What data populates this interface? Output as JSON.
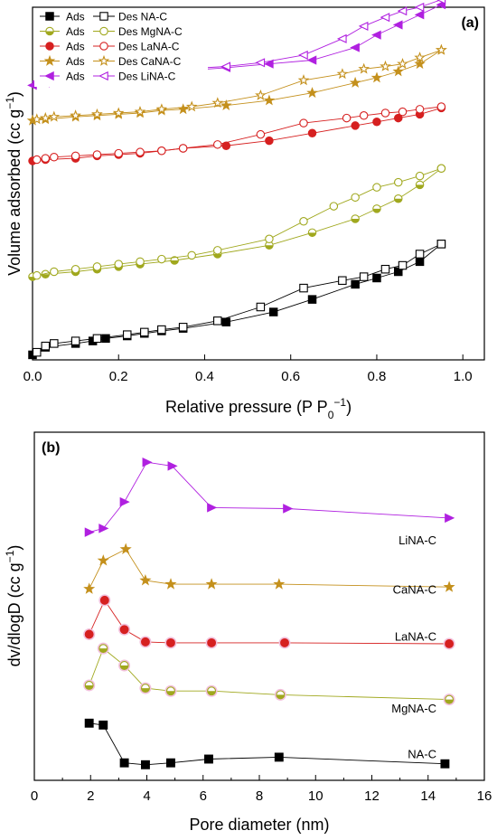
{
  "colors": {
    "NA-C": "#000000",
    "MgNA-C": "#a0a81e",
    "LaNA-C": "#d62020",
    "CaNA-C": "#c4901c",
    "LiNA-C": "#b020e0",
    "halo": "#f2c0dc"
  },
  "markers": {
    "NA-C": "square",
    "MgNA-C": "circle-half",
    "LaNA-C": "circle",
    "CaNA-C": "star",
    "LiNA-C": "triangle-left"
  },
  "chart_data": [
    {
      "type": "scatter",
      "panel_label": "(a)",
      "xlabel": "Relative pressure (P P",
      "xlabel_sub": "0",
      "xlabel_sup": "−1",
      "xlabel_close": ")",
      "ylabel": "Volume adsorbed (cc g",
      "ylabel_sup": "−1",
      "ylabel_close": ")",
      "xlim": [
        0.0,
        1.05
      ],
      "ylim": [
        0,
        14
      ],
      "x_ticks": [
        0.0,
        0.2,
        0.4,
        0.6,
        0.8,
        1.0
      ],
      "x_tick_labels": [
        "0.0",
        "0.2",
        "0.4",
        "0.6",
        "0.8",
        "1.0"
      ],
      "y_ticks_labeled": false,
      "legend_position": "top-left",
      "legend": [
        {
          "ads": "Ads",
          "des": "Des NA-C",
          "key": "NA-C"
        },
        {
          "ads": "Ads",
          "des": "Des MgNA-C",
          "key": "MgNA-C"
        },
        {
          "ads": "Ads",
          "des": "Des LaNA-C",
          "key": "LaNA-C"
        },
        {
          "ads": "Ads",
          "des": "Des CaNA-C",
          "key": "CaNA-C"
        },
        {
          "ads": "Ads",
          "des": "Des LiNA-C",
          "key": "LiNA-C"
        }
      ],
      "series": [
        {
          "name": "NA-C",
          "branch": "ads",
          "x": [
            0.0,
            0.03,
            0.1,
            0.14,
            0.17,
            0.22,
            0.26,
            0.3,
            0.35,
            0.45,
            0.56,
            0.65,
            0.75,
            0.8,
            0.85,
            0.9,
            0.95
          ],
          "y": [
            0.2,
            0.5,
            0.65,
            0.75,
            0.85,
            0.95,
            1.05,
            1.15,
            1.25,
            1.5,
            1.9,
            2.4,
            3.0,
            3.25,
            3.5,
            3.9,
            4.6
          ]
        },
        {
          "name": "NA-C",
          "branch": "des",
          "x": [
            0.01,
            0.03,
            0.05,
            0.1,
            0.15,
            0.22,
            0.26,
            0.3,
            0.35,
            0.43,
            0.53,
            0.63,
            0.72,
            0.77,
            0.82,
            0.86,
            0.9,
            0.95
          ],
          "y": [
            0.3,
            0.55,
            0.65,
            0.75,
            0.85,
            1.0,
            1.1,
            1.2,
            1.3,
            1.55,
            2.1,
            2.85,
            3.15,
            3.3,
            3.6,
            3.75,
            4.2,
            4.6
          ]
        },
        {
          "name": "MgNA-C",
          "branch": "ads",
          "x": [
            0.0,
            0.03,
            0.1,
            0.15,
            0.2,
            0.25,
            0.33,
            0.43,
            0.55,
            0.65,
            0.75,
            0.8,
            0.85,
            0.9,
            0.95
          ],
          "y": [
            3.3,
            3.4,
            3.5,
            3.6,
            3.7,
            3.8,
            3.95,
            4.2,
            4.55,
            5.05,
            5.6,
            6.0,
            6.4,
            6.95,
            7.6
          ]
        },
        {
          "name": "MgNA-C",
          "branch": "des",
          "x": [
            0.01,
            0.05,
            0.1,
            0.15,
            0.2,
            0.25,
            0.3,
            0.37,
            0.43,
            0.55,
            0.63,
            0.7,
            0.75,
            0.8,
            0.85,
            0.9,
            0.95
          ],
          "y": [
            3.35,
            3.5,
            3.6,
            3.7,
            3.8,
            3.9,
            4.0,
            4.15,
            4.35,
            4.8,
            5.5,
            6.1,
            6.45,
            6.85,
            7.05,
            7.3,
            7.6
          ]
        },
        {
          "name": "LaNA-C",
          "branch": "ads",
          "x": [
            0.0,
            0.03,
            0.1,
            0.15,
            0.2,
            0.25,
            0.3,
            0.35,
            0.45,
            0.55,
            0.65,
            0.75,
            0.8,
            0.85,
            0.9,
            0.95
          ],
          "y": [
            7.9,
            7.95,
            8.0,
            8.1,
            8.15,
            8.2,
            8.3,
            8.4,
            8.5,
            8.7,
            9.0,
            9.3,
            9.45,
            9.6,
            9.75,
            10.0
          ]
        },
        {
          "name": "LaNA-C",
          "branch": "des",
          "x": [
            0.01,
            0.03,
            0.05,
            0.1,
            0.15,
            0.2,
            0.25,
            0.3,
            0.35,
            0.43,
            0.53,
            0.63,
            0.73,
            0.77,
            0.82,
            0.86,
            0.9,
            0.95
          ],
          "y": [
            7.95,
            8.0,
            8.05,
            8.1,
            8.15,
            8.2,
            8.25,
            8.3,
            8.4,
            8.55,
            8.95,
            9.4,
            9.6,
            9.7,
            9.8,
            9.85,
            9.95,
            10.05
          ]
        },
        {
          "name": "CaNA-C",
          "branch": "ads",
          "x": [
            0.0,
            0.03,
            0.1,
            0.15,
            0.2,
            0.25,
            0.3,
            0.35,
            0.45,
            0.55,
            0.65,
            0.75,
            0.8,
            0.85,
            0.9,
            0.95
          ],
          "y": [
            9.5,
            9.55,
            9.65,
            9.7,
            9.75,
            9.8,
            9.9,
            9.95,
            10.1,
            10.3,
            10.6,
            11.0,
            11.2,
            11.45,
            11.75,
            12.3
          ]
        },
        {
          "name": "CaNA-C",
          "branch": "des",
          "x": [
            0.01,
            0.03,
            0.05,
            0.1,
            0.15,
            0.2,
            0.25,
            0.3,
            0.37,
            0.43,
            0.53,
            0.63,
            0.72,
            0.77,
            0.82,
            0.86,
            0.9,
            0.95
          ],
          "y": [
            9.55,
            9.6,
            9.65,
            9.7,
            9.75,
            9.8,
            9.85,
            9.95,
            10.05,
            10.2,
            10.5,
            11.1,
            11.35,
            11.55,
            11.65,
            11.75,
            12.0,
            12.3
          ]
        },
        {
          "name": "LiNA-C",
          "branch": "ads",
          "x": [
            0.0,
            0.03,
            0.1,
            0.15,
            0.2,
            0.25,
            0.3,
            0.37,
            0.45,
            0.55,
            0.65,
            0.75,
            0.8,
            0.85,
            0.9,
            0.95
          ],
          "y": [
            10.9,
            11.0,
            11.1,
            11.2,
            11.25,
            11.3,
            11.4,
            11.5,
            11.6,
            11.75,
            11.9,
            12.4,
            12.9,
            13.3,
            13.7,
            14.1
          ]
        },
        {
          "name": "LiNA-C",
          "branch": "des",
          "x": [
            0.01,
            0.02,
            0.03,
            0.05,
            0.1,
            0.15,
            0.2,
            0.25,
            0.3,
            0.35,
            0.45,
            0.53,
            0.63,
            0.72,
            0.77,
            0.82,
            0.86,
            0.9,
            0.95
          ],
          "y": [
            11.05,
            11.1,
            11.15,
            11.2,
            11.25,
            11.3,
            11.35,
            11.4,
            11.5,
            11.55,
            11.65,
            11.8,
            12.1,
            12.75,
            13.25,
            13.6,
            13.85,
            14.0,
            14.3
          ]
        }
      ]
    },
    {
      "type": "line",
      "panel_label": "(b)",
      "xlabel": "Pore diameter (nm)",
      "ylabel": "dv/dlogD (cc g",
      "ylabel_sup": "−1",
      "ylabel_close": ")",
      "xlim": [
        0,
        16
      ],
      "ylim": [
        0,
        15
      ],
      "x_ticks": [
        0,
        2,
        4,
        6,
        8,
        10,
        12,
        14,
        16
      ],
      "x_tick_labels": [
        "0",
        "2",
        "4",
        "6",
        "8",
        "10",
        "12",
        "14",
        "16"
      ],
      "y_ticks_labeled": false,
      "series_labels": [
        {
          "key": "LiNA-C",
          "text": "LiNA-C",
          "x": 14.3,
          "y": 12.1
        },
        {
          "key": "CaNA-C",
          "text": "CaNA-C",
          "x": 14.3,
          "y": 9.5
        },
        {
          "key": "LaNA-C",
          "text": "LaNA-C",
          "x": 14.3,
          "y": 7.0
        },
        {
          "key": "MgNA-C",
          "text": "MgNA-C",
          "x": 14.3,
          "y": 3.2
        },
        {
          "key": "NA-C",
          "text": "NA-C",
          "x": 14.3,
          "y": 0.8
        }
      ],
      "series": [
        {
          "name": "NA-C",
          "x": [
            1.95,
            2.45,
            3.2,
            3.95,
            4.85,
            6.2,
            8.7,
            14.6
          ],
          "y": [
            2.45,
            2.35,
            0.35,
            0.25,
            0.35,
            0.55,
            0.65,
            0.3
          ]
        },
        {
          "name": "MgNA-C",
          "x": [
            1.95,
            2.45,
            3.2,
            3.95,
            4.85,
            6.3,
            8.75,
            14.75
          ],
          "y": [
            4.45,
            6.4,
            5.5,
            4.3,
            4.15,
            4.15,
            3.95,
            3.7
          ]
        },
        {
          "name": "LaNA-C",
          "x": [
            1.95,
            2.5,
            3.2,
            3.95,
            4.85,
            6.3,
            8.9,
            14.75
          ],
          "y": [
            7.15,
            8.95,
            7.4,
            6.75,
            6.7,
            6.7,
            6.7,
            6.65
          ]
        },
        {
          "name": "CaNA-C",
          "x": [
            1.95,
            2.45,
            3.25,
            3.95,
            4.85,
            6.3,
            8.7,
            14.75
          ],
          "y": [
            9.55,
            11.05,
            11.65,
            10.0,
            9.8,
            9.8,
            9.8,
            9.65
          ]
        },
        {
          "name": "LiNA-C",
          "x": [
            1.95,
            2.45,
            3.2,
            4.0,
            4.9,
            6.3,
            9.0,
            14.75
          ],
          "y": [
            12.55,
            12.75,
            14.15,
            16.25,
            16.05,
            13.85,
            13.8,
            13.3
          ]
        }
      ]
    }
  ]
}
